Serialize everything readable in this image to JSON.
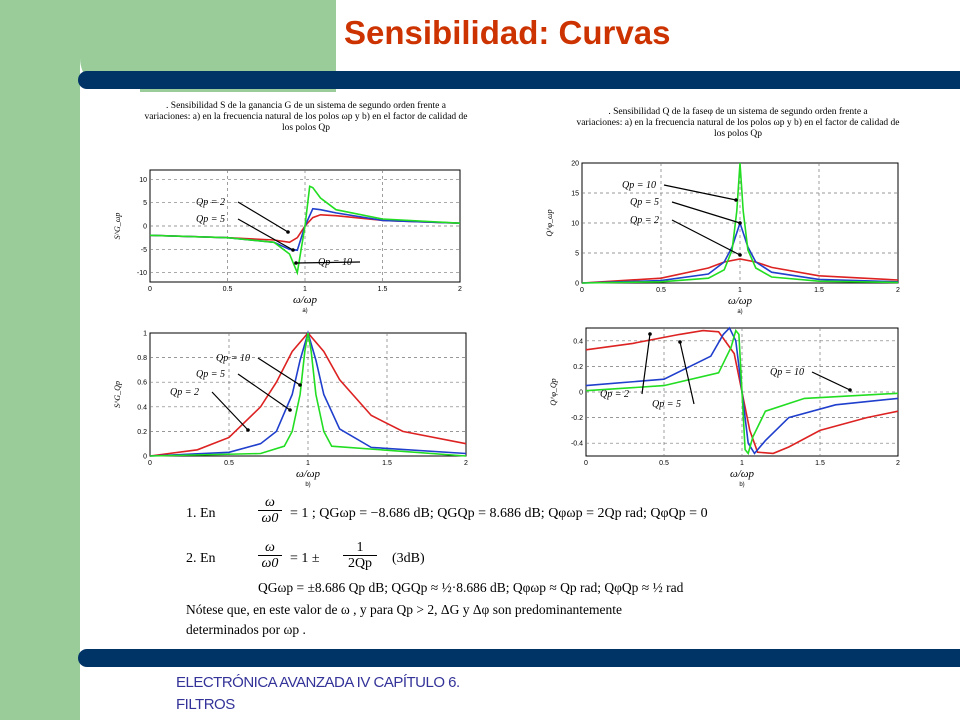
{
  "slide": {
    "title": "Sensibilidad: Curvas",
    "footer_line1": "ELECTRÓNICA AVANZADA IV CAPÍTULO 6.",
    "footer_line2": "FILTROS"
  },
  "captions": {
    "left_line1": ". Sensibilidad  S de la ganancia  G  de un sistema de segundo orden frente a",
    "left_line2": "variaciones: a) en la frecuencia natural de los polos ωp y b) en el factor de calidad de",
    "left_line3": "los polos Qp",
    "right_line1": ". Sensibilidad Q de la faseφ  de un sistema de segundo orden frente a",
    "right_line2": "variaciones: a) en la frecuencia natural de los polos ωp y b) en el factor de calidad de",
    "right_line3": "los polos Qp"
  },
  "colors": {
    "title": "#cc3300",
    "footer": "#333399",
    "bars": "#003366",
    "green_panel": "#99cc99",
    "qp2": "#dd2222",
    "qp5": "#1f3fcc",
    "qp10": "#22dd22"
  },
  "equations": {
    "eq1_prefix": "1.  En",
    "eq1_frac_num": "ω",
    "eq1_frac_den": "ω0",
    "eq1_body": "= 1  ;  QGωp = −8.686 dB; QGQp = 8.686 dB; Qφωp = 2Qp  rad;  QφQp = 0",
    "eq2_prefix": "2.  En",
    "eq2_frac_num": "ω",
    "eq2_frac_den": "ω0",
    "eq2_body": "= 1 ±",
    "eq2_rfrac_num": "1",
    "eq2_rfrac_den": "2Qp",
    "eq2_suffix": "(3dB)",
    "eq3": "QGωp = ±8.686 Qp dB;     QGQp ≈ ½·8.686 dB;    Qφωp ≈ Qp rad;   QφQp ≈ ½ rad",
    "note1": "Nótese que, en este valor de  ω , y para  Qp > 2,  ΔG y Δφ  son predominantemente",
    "note2": "determinados por  ωp ."
  },
  "chart_data": [
    {
      "type": "line",
      "panel": "a) S^G_ωp",
      "xlabel": "ω/ωp",
      "sublabel": "a)",
      "ylabel": "S^G_ωp",
      "xlim": [
        0,
        2
      ],
      "ylim": [
        -12,
        12
      ],
      "xticks": [
        "0",
        "0.5",
        "1",
        "1.5",
        "2"
      ],
      "yticks": [
        "10",
        "5",
        "0",
        "-5",
        "-10"
      ],
      "annotations": [
        "Qp = 2",
        "Qp = 5",
        "Qp = 10"
      ],
      "series": [
        {
          "name": "Qp = 2",
          "x": [
            0,
            0.5,
            0.8,
            0.9,
            0.95,
            1.0,
            1.05,
            1.1,
            1.2,
            1.5,
            2.0
          ],
          "values": [
            -2,
            -2.5,
            -3,
            -3.5,
            -2.5,
            0,
            1.8,
            2.4,
            2.2,
            1.2,
            0.6
          ]
        },
        {
          "name": "Qp = 5",
          "x": [
            0,
            0.5,
            0.8,
            0.9,
            0.95,
            1.0,
            1.05,
            1.1,
            1.2,
            1.5,
            2.0
          ],
          "values": [
            -2,
            -2.5,
            -3.5,
            -5,
            -5.2,
            0,
            3.7,
            3.5,
            2.8,
            1.2,
            0.6
          ]
        },
        {
          "name": "Qp = 10",
          "x": [
            0,
            0.5,
            0.8,
            0.9,
            0.95,
            1.0,
            1.03,
            1.05,
            1.1,
            1.2,
            1.5,
            2.0
          ],
          "values": [
            -2,
            -2.5,
            -3.5,
            -6,
            -10,
            0,
            8.5,
            8.2,
            6,
            3.5,
            1.5,
            0.6
          ]
        }
      ]
    },
    {
      "type": "line",
      "panel": "a) Q^φ_ωp",
      "xlabel": "ω/ωp",
      "sublabel": "a)",
      "ylabel": "Q^φ_ωp",
      "xlim": [
        0,
        2
      ],
      "ylim": [
        0,
        20
      ],
      "xticks": [
        "0",
        "0.5",
        "1",
        "1.5",
        "2"
      ],
      "yticks": [
        "20",
        "15",
        "10",
        "5",
        "0"
      ],
      "annotations": [
        "Qp = 10",
        "Qp = 5",
        "Qp = 2"
      ],
      "series": [
        {
          "name": "Qp = 2",
          "x": [
            0,
            0.5,
            0.8,
            0.9,
            1.0,
            1.1,
            1.2,
            1.5,
            2.0
          ],
          "values": [
            0,
            0.8,
            2.5,
            3.5,
            4,
            3.5,
            2.6,
            1.2,
            0.5
          ]
        },
        {
          "name": "Qp = 5",
          "x": [
            0,
            0.5,
            0.8,
            0.9,
            0.95,
            1.0,
            1.05,
            1.1,
            1.2,
            1.5,
            2.0
          ],
          "values": [
            0,
            0.4,
            1.5,
            3.5,
            6,
            10,
            6,
            3.5,
            1.8,
            0.6,
            0.2
          ]
        },
        {
          "name": "Qp = 10",
          "x": [
            0,
            0.5,
            0.8,
            0.9,
            0.95,
            0.98,
            1.0,
            1.02,
            1.05,
            1.1,
            1.2,
            1.5,
            2.0
          ],
          "values": [
            0,
            0.2,
            0.8,
            2.2,
            5.5,
            12,
            20,
            12,
            5.5,
            2.5,
            1,
            0.3,
            0.1
          ]
        }
      ]
    },
    {
      "type": "line",
      "panel": "b) S^G_Qp",
      "xlabel": "ω/ωp",
      "sublabel": "b)",
      "ylabel": "S^G_Qp",
      "xlim": [
        0,
        2
      ],
      "ylim": [
        0,
        1
      ],
      "xticks": [
        "0",
        "0.5",
        "1",
        "1.5",
        "2"
      ],
      "yticks": [
        "1",
        "0.8",
        "0.6",
        "0.4",
        "0.2",
        "0"
      ],
      "annotations": [
        "Qp = 10",
        "Qp = 5",
        "Qp = 2"
      ],
      "series": [
        {
          "name": "Qp = 2",
          "x": [
            0,
            0.3,
            0.5,
            0.7,
            0.8,
            0.9,
            1.0,
            1.1,
            1.2,
            1.4,
            1.6,
            2.0
          ],
          "values": [
            0,
            0.05,
            0.15,
            0.4,
            0.6,
            0.85,
            1,
            0.85,
            0.62,
            0.33,
            0.2,
            0.1
          ]
        },
        {
          "name": "Qp = 5",
          "x": [
            0,
            0.5,
            0.7,
            0.8,
            0.9,
            0.95,
            1.0,
            1.05,
            1.1,
            1.2,
            1.4,
            2.0
          ],
          "values": [
            0,
            0.03,
            0.1,
            0.2,
            0.5,
            0.78,
            1,
            0.78,
            0.5,
            0.22,
            0.07,
            0.02
          ]
        },
        {
          "name": "Qp = 10",
          "x": [
            0,
            0.7,
            0.85,
            0.9,
            0.95,
            0.98,
            1.0,
            1.02,
            1.05,
            1.1,
            1.15,
            2.0
          ],
          "values": [
            0,
            0.02,
            0.08,
            0.2,
            0.5,
            0.85,
            1,
            0.85,
            0.5,
            0.2,
            0.08,
            0
          ]
        }
      ]
    },
    {
      "type": "line",
      "panel": "b) Q^φ_Qp",
      "xlabel": "ω/ωp",
      "sublabel": "b)",
      "ylabel": "Q^φ_Qp",
      "xlim": [
        0,
        2
      ],
      "ylim": [
        -0.5,
        0.5
      ],
      "xticks": [
        "0",
        "0.5",
        "1",
        "1.5",
        "2"
      ],
      "yticks": [
        "0.4",
        "0.2",
        "0",
        "-0.2",
        "-0.4"
      ],
      "annotations": [
        "Qp = 2",
        "Qp = 5",
        "Qp = 10"
      ],
      "series": [
        {
          "name": "Qp = 2",
          "x": [
            0,
            0.3,
            0.6,
            0.75,
            0.85,
            0.95,
            1.0,
            1.05,
            1.1,
            1.2,
            1.3,
            1.5,
            1.8,
            2.0
          ],
          "values": [
            0.33,
            0.38,
            0.45,
            0.48,
            0.47,
            0.3,
            0,
            -0.3,
            -0.47,
            -0.48,
            -0.43,
            -0.3,
            -0.2,
            -0.15
          ]
        },
        {
          "name": "Qp = 5",
          "x": [
            0,
            0.5,
            0.8,
            0.88,
            0.92,
            0.96,
            1.0,
            1.04,
            1.08,
            1.15,
            1.3,
            1.6,
            2.0
          ],
          "values": [
            0.05,
            0.1,
            0.28,
            0.45,
            0.5,
            0.4,
            0,
            -0.4,
            -0.48,
            -0.38,
            -0.2,
            -0.1,
            -0.05
          ]
        },
        {
          "name": "Qp = 10",
          "x": [
            0,
            0.5,
            0.85,
            0.93,
            0.96,
            0.98,
            1.0,
            1.02,
            1.04,
            1.07,
            1.15,
            1.4,
            2.0
          ],
          "values": [
            0.01,
            0.05,
            0.15,
            0.35,
            0.48,
            0.45,
            0,
            -0.45,
            -0.48,
            -0.35,
            -0.15,
            -0.05,
            -0.01
          ]
        }
      ]
    }
  ]
}
